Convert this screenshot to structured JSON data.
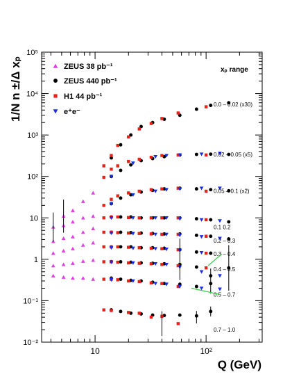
{
  "chart_data": {
    "type": "scatter",
    "xlabel": "Q (GeV)",
    "ylabel": "1/N  n ±/Δ xₚ",
    "xscale": "log",
    "yscale": "log",
    "xlim": [
      3.3,
      320
    ],
    "ylim": [
      0.01,
      100000
    ],
    "x_ticklabels": [
      "10",
      "10²"
    ],
    "y_ticklabels": [
      "10⁻²",
      "10⁻¹",
      "1",
      "10",
      "10²",
      "10³",
      "10⁴",
      "10⁵"
    ],
    "legend_position": "top-left",
    "legend": [
      {
        "label": "ZEUS 38 pb⁻¹",
        "marker": "triangle-up",
        "color": "#e040e0"
      },
      {
        "label": "ZEUS 440 pb⁻¹",
        "marker": "circle",
        "color": "#000000"
      },
      {
        "label": "H1 44 pb⁻¹",
        "marker": "square",
        "color": "#e8211a"
      },
      {
        "label": "e⁺e⁻",
        "marker": "triangle-down",
        "color": "#1a2ee8"
      }
    ],
    "range_header": "xₚ range",
    "range_labels": [
      {
        "text": "0.0 – 0.02 (x30)",
        "y": 5500.0
      },
      {
        "text": "0.02 – 0.05 (x5)",
        "y": 340
      },
      {
        "text": "0.05 – 0.1 (x2)",
        "y": 45
      },
      {
        "text": "0.1    0.2",
        "y": 6.0
      },
      {
        "text": "0.2 – 0.3",
        "y": 2.8
      },
      {
        "text": "0.3 – 0.4",
        "y": 1.35
      },
      {
        "text": "0.4 – 0.5",
        "y": 0.58
      },
      {
        "text": "0.5 – 0.7",
        "y": 0.14
      },
      {
        "text": "0.7 – 1.0",
        "y": 0.02
      }
    ],
    "series": [
      {
        "name": "ZEUS 38 pb⁻¹",
        "points": [
          [
            4.2,
            0.4
          ],
          [
            4.2,
            0.7
          ],
          [
            4.2,
            1.4
          ],
          [
            4.2,
            2.7
          ],
          [
            4.2,
            6
          ],
          [
            5.2,
            0.37
          ],
          [
            5.2,
            0.75
          ],
          [
            5.2,
            1.6
          ],
          [
            5.2,
            3.2
          ],
          [
            5.2,
            6.5
          ],
          [
            5.2,
            11
          ],
          [
            6.3,
            0.35
          ],
          [
            6.3,
            0.8
          ],
          [
            6.3,
            1.8
          ],
          [
            6.3,
            3.5
          ],
          [
            6.3,
            8
          ],
          [
            6.3,
            15
          ],
          [
            7.8,
            0.35
          ],
          [
            7.8,
            0.9
          ],
          [
            7.8,
            2.2
          ],
          [
            7.8,
            4.5
          ],
          [
            7.8,
            10
          ],
          [
            7.8,
            25
          ],
          [
            9.6,
            0.33
          ],
          [
            9.6,
            0.95
          ],
          [
            9.6,
            2.5
          ],
          [
            9.6,
            5.5
          ],
          [
            9.6,
            11
          ],
          [
            9.6,
            40
          ]
        ]
      },
      {
        "name": "ZEUS 440 pb⁻¹",
        "points": [
          [
            14,
            280
          ],
          [
            17,
            580
          ],
          [
            21,
            1000
          ],
          [
            26,
            1600
          ],
          [
            33,
            2000
          ],
          [
            42,
            2400
          ],
          [
            58,
            3000
          ],
          [
            82,
            4200
          ],
          [
            110,
            5200
          ],
          [
            160,
            6000
          ],
          [
            14,
            100
          ],
          [
            17,
            140
          ],
          [
            21,
            190
          ],
          [
            26,
            240
          ],
          [
            33,
            270
          ],
          [
            42,
            300
          ],
          [
            58,
            330
          ],
          [
            82,
            340
          ],
          [
            110,
            345
          ],
          [
            160,
            340
          ],
          [
            14,
            22
          ],
          [
            17,
            30
          ],
          [
            21,
            36
          ],
          [
            26,
            42
          ],
          [
            33,
            46
          ],
          [
            42,
            50
          ],
          [
            58,
            52
          ],
          [
            82,
            50
          ],
          [
            110,
            48
          ],
          [
            160,
            45
          ],
          [
            14,
            10.5
          ],
          [
            17,
            10.5
          ],
          [
            21,
            10.5
          ],
          [
            26,
            10
          ],
          [
            33,
            10
          ],
          [
            42,
            10
          ],
          [
            58,
            10
          ],
          [
            82,
            9.5
          ],
          [
            110,
            9
          ],
          [
            160,
            8
          ],
          [
            14,
            4.5
          ],
          [
            17,
            4.5
          ],
          [
            21,
            4.4
          ],
          [
            26,
            4.3
          ],
          [
            33,
            4.2
          ],
          [
            42,
            4.1
          ],
          [
            58,
            4.1
          ],
          [
            82,
            3.8
          ],
          [
            110,
            3.6
          ],
          [
            160,
            3.1
          ],
          [
            14,
            2.0
          ],
          [
            17,
            2.0
          ],
          [
            21,
            2.0
          ],
          [
            26,
            1.9
          ],
          [
            33,
            1.9
          ],
          [
            42,
            1.85
          ],
          [
            58,
            1.7
          ],
          [
            82,
            1.5
          ],
          [
            110,
            1.4
          ],
          [
            14,
            0.88
          ],
          [
            17,
            0.87
          ],
          [
            21,
            0.85
          ],
          [
            26,
            0.82
          ],
          [
            33,
            0.8
          ],
          [
            42,
            0.78
          ],
          [
            58,
            0.75
          ],
          [
            82,
            0.65
          ],
          [
            110,
            0.4
          ],
          [
            160,
            0.62
          ],
          [
            14,
            0.35
          ],
          [
            17,
            0.33
          ],
          [
            21,
            0.31
          ],
          [
            26,
            0.3
          ],
          [
            33,
            0.28
          ],
          [
            42,
            0.26
          ],
          [
            58,
            0.25
          ],
          [
            82,
            0.22
          ],
          [
            110,
            0.26
          ],
          [
            14,
            0.06
          ],
          [
            17,
            0.055
          ],
          [
            21,
            0.05
          ],
          [
            26,
            0.048
          ],
          [
            33,
            0.045
          ],
          [
            42,
            0.044
          ],
          [
            58,
            0.045
          ],
          [
            82,
            0.043
          ],
          [
            110,
            0.055
          ]
        ]
      },
      {
        "name": "H1 44 pb⁻¹",
        "points": [
          [
            12,
            180
          ],
          [
            14,
            320
          ],
          [
            16,
            560
          ],
          [
            20,
            900
          ],
          [
            25,
            1400
          ],
          [
            32,
            1900
          ],
          [
            40,
            2500
          ],
          [
            56,
            3400
          ],
          [
            100,
            4800
          ],
          [
            12,
            95
          ],
          [
            14,
            150
          ],
          [
            16,
            180
          ],
          [
            20,
            230
          ],
          [
            25,
            260
          ],
          [
            32,
            290
          ],
          [
            40,
            320
          ],
          [
            56,
            330
          ],
          [
            100,
            330
          ],
          [
            12,
            20
          ],
          [
            14,
            28
          ],
          [
            16,
            34
          ],
          [
            20,
            40
          ],
          [
            25,
            44
          ],
          [
            32,
            48
          ],
          [
            40,
            50
          ],
          [
            56,
            52
          ],
          [
            100,
            44
          ],
          [
            12,
            10
          ],
          [
            14,
            10.5
          ],
          [
            16,
            10.5
          ],
          [
            20,
            10.2
          ],
          [
            25,
            10
          ],
          [
            32,
            10
          ],
          [
            40,
            10
          ],
          [
            56,
            10
          ],
          [
            100,
            9
          ],
          [
            12,
            4.5
          ],
          [
            14,
            4.5
          ],
          [
            16,
            4.4
          ],
          [
            20,
            4.3
          ],
          [
            25,
            4.2
          ],
          [
            32,
            4.1
          ],
          [
            40,
            4.0
          ],
          [
            56,
            4.0
          ],
          [
            100,
            3.6
          ],
          [
            12,
            2.0
          ],
          [
            14,
            2.0
          ],
          [
            16,
            2.0
          ],
          [
            20,
            1.95
          ],
          [
            25,
            1.9
          ],
          [
            32,
            1.85
          ],
          [
            40,
            1.8
          ],
          [
            56,
            1.7
          ],
          [
            100,
            1.4
          ],
          [
            12,
            0.87
          ],
          [
            14,
            0.87
          ],
          [
            16,
            0.85
          ],
          [
            20,
            0.82
          ],
          [
            25,
            0.8
          ],
          [
            32,
            0.78
          ],
          [
            40,
            0.75
          ],
          [
            56,
            0.7
          ],
          [
            100,
            0.62
          ],
          [
            12,
            0.33
          ],
          [
            14,
            0.33
          ],
          [
            16,
            0.32
          ],
          [
            20,
            0.3
          ],
          [
            25,
            0.29
          ],
          [
            32,
            0.27
          ],
          [
            40,
            0.26
          ],
          [
            56,
            0.22
          ],
          [
            12,
            0.06
          ],
          [
            14,
            0.058
          ],
          [
            20,
            0.052
          ],
          [
            25,
            0.05
          ],
          [
            32,
            0.04
          ],
          [
            40,
            0.042
          ],
          [
            56,
            0.028
          ]
        ]
      },
      {
        "name": "e⁺e⁻",
        "points": [
          [
            14,
            100
          ],
          [
            22,
            210
          ],
          [
            35,
            300
          ],
          [
            44,
            320
          ],
          [
            58,
            330
          ],
          [
            91,
            345
          ],
          [
            133,
            360
          ],
          [
            14,
            22
          ],
          [
            22,
            36
          ],
          [
            35,
            44
          ],
          [
            44,
            48
          ],
          [
            58,
            50
          ],
          [
            91,
            52
          ],
          [
            133,
            52
          ],
          [
            14,
            10
          ],
          [
            22,
            10
          ],
          [
            35,
            10
          ],
          [
            44,
            10
          ],
          [
            58,
            9.5
          ],
          [
            91,
            9
          ],
          [
            133,
            8.5
          ],
          [
            14,
            4.3
          ],
          [
            22,
            4.2
          ],
          [
            35,
            4.0
          ],
          [
            44,
            4.0
          ],
          [
            58,
            3.8
          ],
          [
            91,
            3.5
          ],
          [
            133,
            3.2
          ],
          [
            14,
            1.9
          ],
          [
            22,
            1.85
          ],
          [
            35,
            1.8
          ],
          [
            44,
            1.75
          ],
          [
            58,
            1.65
          ],
          [
            91,
            1.45
          ],
          [
            14,
            0.85
          ],
          [
            22,
            0.82
          ],
          [
            35,
            0.78
          ],
          [
            44,
            0.75
          ],
          [
            58,
            0.65
          ],
          [
            91,
            0.5
          ],
          [
            133,
            0.4
          ],
          [
            14,
            0.32
          ],
          [
            22,
            0.3
          ],
          [
            35,
            0.26
          ],
          [
            44,
            0.25
          ],
          [
            58,
            0.22
          ],
          [
            91,
            0.2
          ],
          [
            133,
            0.19
          ]
        ]
      }
    ]
  }
}
